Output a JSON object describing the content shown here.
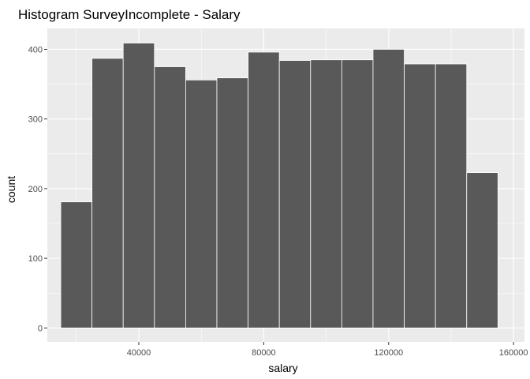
{
  "chart_data": {
    "type": "bar",
    "title": "Histogram SurveyIncomplete - Salary",
    "xlabel": "salary",
    "ylabel": "count",
    "bin_width": 10000,
    "bins": [
      {
        "x0": 15000,
        "x1": 25000,
        "count": 181
      },
      {
        "x0": 25000,
        "x1": 35000,
        "count": 387
      },
      {
        "x0": 35000,
        "x1": 45000,
        "count": 409
      },
      {
        "x0": 45000,
        "x1": 55000,
        "count": 375
      },
      {
        "x0": 55000,
        "x1": 65000,
        "count": 356
      },
      {
        "x0": 65000,
        "x1": 75000,
        "count": 359
      },
      {
        "x0": 75000,
        "x1": 85000,
        "count": 396
      },
      {
        "x0": 85000,
        "x1": 95000,
        "count": 384
      },
      {
        "x0": 95000,
        "x1": 105000,
        "count": 385
      },
      {
        "x0": 105000,
        "x1": 115000,
        "count": 385
      },
      {
        "x0": 115000,
        "x1": 125000,
        "count": 400
      },
      {
        "x0": 125000,
        "x1": 135000,
        "count": 379
      },
      {
        "x0": 135000,
        "x1": 145000,
        "count": 379
      },
      {
        "x0": 145000,
        "x1": 155000,
        "count": 223
      }
    ],
    "xlim": [
      10700,
      163500
    ],
    "ylim": [
      -20,
      430
    ],
    "x_ticks": [
      40000,
      80000,
      120000,
      160000
    ],
    "x_tick_labels": [
      "40000",
      "80000",
      "120000",
      "160000"
    ],
    "y_ticks": [
      0,
      100,
      200,
      300,
      400
    ],
    "y_tick_labels": [
      "0",
      "100",
      "200",
      "300",
      "400"
    ],
    "grid": true,
    "colors": {
      "panel": "#ebebeb",
      "grid_major": "#ffffff",
      "bar_fill": "#595959",
      "bar_stroke": "#ffffff",
      "tick": "#333333"
    }
  }
}
